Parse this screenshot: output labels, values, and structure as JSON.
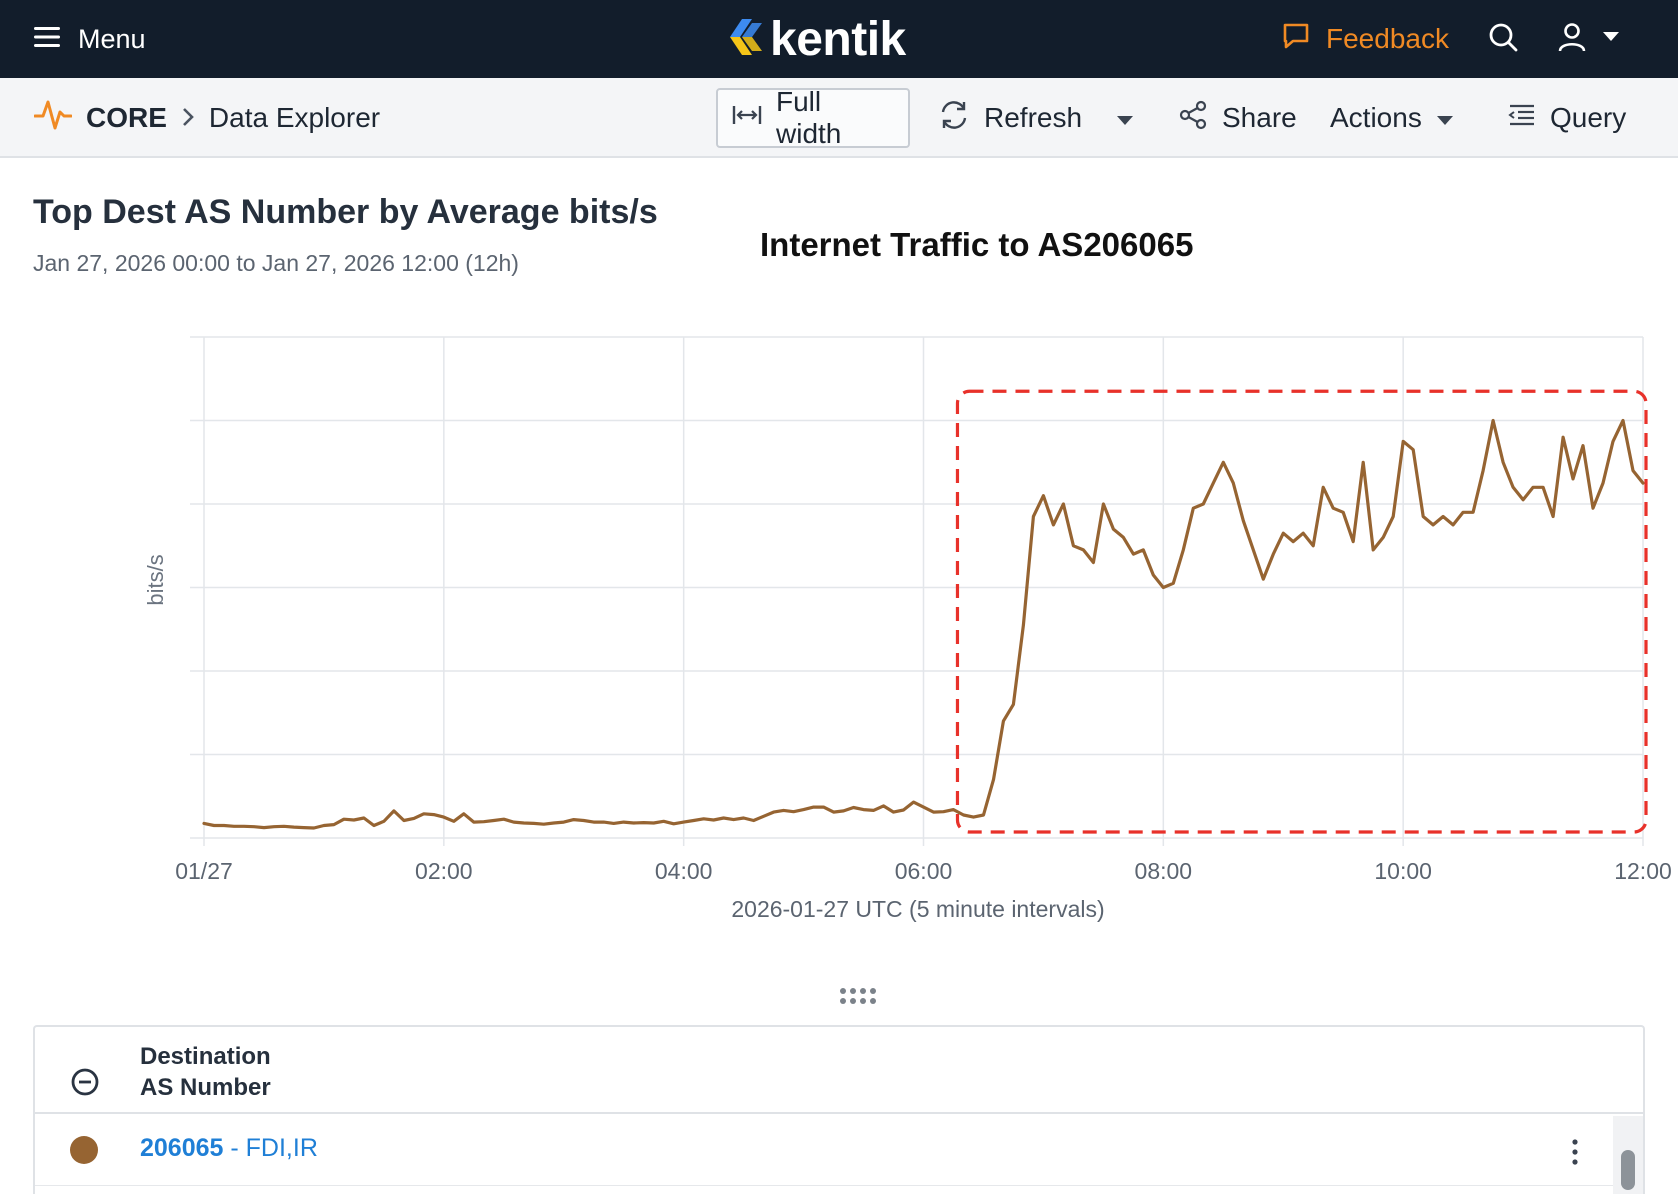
{
  "topbar": {
    "menu_label": "Menu",
    "logo_text": "kentik",
    "feedback_label": "Feedback"
  },
  "subbar": {
    "crumb_root": "CORE",
    "crumb_current": "Data Explorer",
    "full_width_label": "Full width",
    "refresh_label": "Refresh",
    "share_label": "Share",
    "actions_label": "Actions",
    "query_label": "Query"
  },
  "page": {
    "title": "Top Dest AS Number by Average bits/s",
    "time_range": "Jan 27, 2026 00:00 to Jan 27, 2026 12:00 (12h)"
  },
  "chart_data": {
    "type": "line",
    "title": "Internet Traffic to AS206065",
    "xlabel": "2026-01-27 UTC (5 minute intervals)",
    "ylabel": "bits/s",
    "x_range_hours": [
      0,
      12
    ],
    "x_ticks": [
      {
        "hour": 0,
        "label": "01/27"
      },
      {
        "hour": 2,
        "label": "02:00"
      },
      {
        "hour": 4,
        "label": "04:00"
      },
      {
        "hour": 6,
        "label": "06:00"
      },
      {
        "hour": 8,
        "label": "08:00"
      },
      {
        "hour": 10,
        "label": "10:00"
      },
      {
        "hour": 12,
        "label": "12:00"
      }
    ],
    "ylim": [
      0,
      12
    ],
    "y_gridlines": 6,
    "grid": true,
    "y_tick_labels_shown": false,
    "series_color": "#966432",
    "highlight": {
      "x_from_hours": 6.3,
      "x_to_hours": 12,
      "y_from": 0,
      "y_to": 10.7,
      "style": "dashed",
      "color": "#e8312a"
    },
    "series": [
      {
        "name": "206065 - FDI,IR",
        "x_step_minutes": 5,
        "values": [
          0.35,
          0.3,
          0.3,
          0.28,
          0.28,
          0.27,
          0.25,
          0.27,
          0.28,
          0.26,
          0.25,
          0.24,
          0.3,
          0.32,
          0.45,
          0.43,
          0.48,
          0.3,
          0.4,
          0.65,
          0.42,
          0.47,
          0.58,
          0.56,
          0.5,
          0.4,
          0.58,
          0.38,
          0.39,
          0.42,
          0.45,
          0.38,
          0.36,
          0.35,
          0.33,
          0.36,
          0.38,
          0.44,
          0.42,
          0.38,
          0.38,
          0.35,
          0.38,
          0.36,
          0.37,
          0.36,
          0.4,
          0.34,
          0.38,
          0.42,
          0.46,
          0.43,
          0.48,
          0.44,
          0.48,
          0.42,
          0.52,
          0.62,
          0.66,
          0.63,
          0.68,
          0.74,
          0.74,
          0.62,
          0.65,
          0.73,
          0.68,
          0.66,
          0.77,
          0.62,
          0.67,
          0.86,
          0.74,
          0.62,
          0.63,
          0.68,
          0.55,
          0.5,
          0.55,
          1.4,
          2.8,
          3.2,
          5.1,
          7.7,
          8.2,
          7.5,
          8.0,
          7.0,
          6.9,
          6.6,
          8.0,
          7.4,
          7.2,
          6.8,
          6.9,
          6.3,
          6.0,
          6.1,
          6.9,
          7.9,
          8.0,
          8.5,
          9.0,
          8.5,
          7.6,
          6.9,
          6.2,
          6.8,
          7.3,
          7.1,
          7.3,
          7.0,
          8.4,
          7.9,
          7.8,
          7.1,
          9.0,
          6.9,
          7.2,
          7.7,
          9.5,
          9.3,
          7.7,
          7.5,
          7.7,
          7.5,
          7.8,
          7.8,
          8.8,
          10.0,
          9.0,
          8.4,
          8.1,
          8.4,
          8.4,
          7.7,
          9.6,
          8.6,
          9.4,
          7.9,
          8.5,
          9.5,
          10.0,
          8.8,
          8.5
        ]
      }
    ]
  },
  "table": {
    "col_header_line1": "Destination",
    "col_header_line2": "AS Number",
    "rows": [
      {
        "as_number": "206065",
        "as_name": " - FDI,IR",
        "color": "#966432"
      }
    ]
  }
}
